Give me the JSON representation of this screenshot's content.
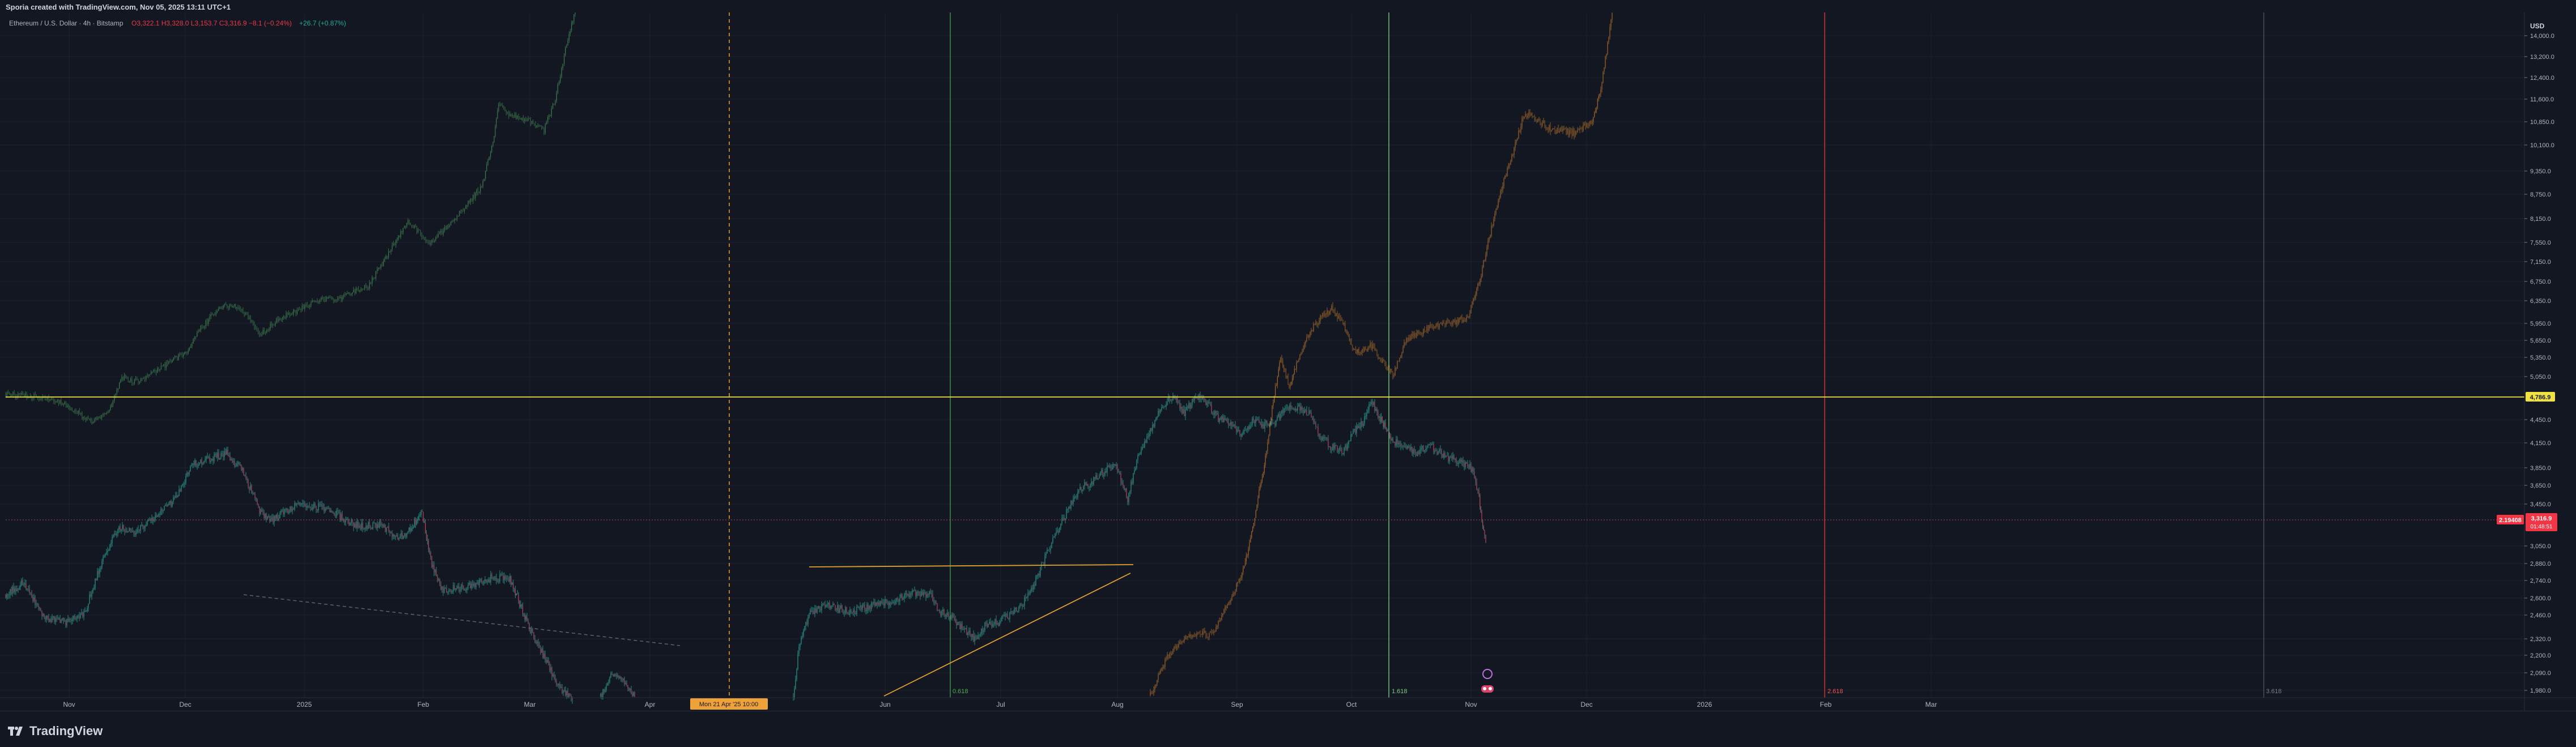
{
  "header": {
    "text": "Sporia created with TradingView.com, Nov 05, 2025 13:11 UTC+1"
  },
  "footer": {
    "brand": "TradingView",
    "logo_icon": "tradingview-logo-icon"
  },
  "chart_data": {
    "type": "candlestick",
    "legend": {
      "symbol": "Ethereum / U.S. Dollar · 4h · Bitstamp",
      "ohlc": "O3,322.1 H3,328.0 L3,153.7 C3,316.9 −8.1 (−0.24%)",
      "change": "+26.7 (+0.87%)"
    },
    "currency": "USD",
    "y_ticks": [
      "14,000.0",
      "13,200.0",
      "12,400.0",
      "11,600.0",
      "10,850.0",
      "10,100.0",
      "9,350.0",
      "8,750.0",
      "8,150.0",
      "7,550.0",
      "7,150.0",
      "6,750.0",
      "6,350.0",
      "5,950.0",
      "5,650.0",
      "5,350.0",
      "5,050.0",
      "4,450.0",
      "4,150.0",
      "3,850.0",
      "3,650.0",
      "3,450.0",
      "3,050.0",
      "2,880.0",
      "2,740.0",
      "2,600.0",
      "2,460.0",
      "2,320.0",
      "2,200.0",
      "2,090.0",
      "1,980.0"
    ],
    "x_ticks": [
      "Nov",
      "Dec",
      "2025",
      "Feb",
      "Mar",
      "Apr",
      "Jun",
      "Jul",
      "Aug",
      "Sep",
      "Oct",
      "Nov",
      "Dec",
      "2026",
      "Feb",
      "Mar"
    ],
    "price_labels": {
      "level": "4,786.9",
      "current": "3,316.9",
      "countdown": "01:48:51",
      "crosshair": "2.19408"
    },
    "date_label": "Mon 21 Apr '25 10:00",
    "vline_labels": [
      "0.618",
      "1.618",
      "2.618",
      "3.618"
    ]
  }
}
